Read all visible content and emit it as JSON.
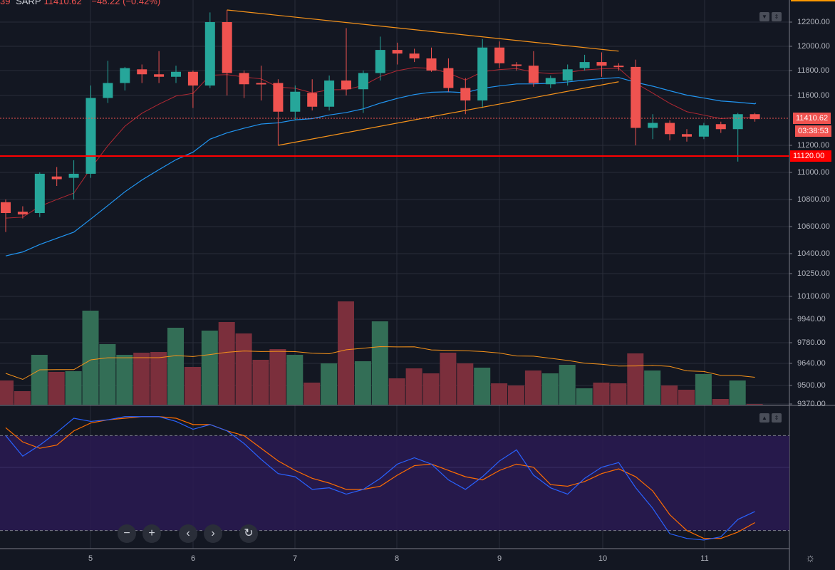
{
  "header": {
    "interval": "39",
    "symbol": "SARP",
    "price": "11410.62",
    "change": "−48.22 (−0.42%)"
  },
  "price_axis": {
    "labels": [
      "12200.00",
      "12000.00",
      "11800.00",
      "11600.00",
      "11200.00",
      "11000.00",
      "10800.00",
      "10600.00",
      "10400.00",
      "10250.00",
      "10100.00",
      "9940.00",
      "9780.00",
      "9640.00",
      "9500.00",
      "9370.00"
    ],
    "current_price_tag": "11410.62",
    "countdown_tag": "03:38:53",
    "alert_line_tag": "11120.00"
  },
  "time_axis": {
    "labels": [
      "5",
      "6",
      "7",
      "8",
      "9",
      "10",
      "11"
    ]
  },
  "colors": {
    "background": "#131722",
    "up": "#26a69a",
    "down": "#ef5350",
    "alert": "#ff0000",
    "trendline": "#f7931a",
    "ma_fast": "#b22833",
    "ma_slow": "#2196f3",
    "stoch_k": "#2962ff",
    "stoch_d": "#ff6d00",
    "stoch_band": "#2a1a52"
  },
  "controls": {
    "zoom_out": "−",
    "zoom_in": "+",
    "scroll_left": "‹",
    "scroll_right": "›",
    "reset": "↻"
  },
  "chart_data": {
    "type": "candlestick",
    "candles": [
      [
        10780,
        10800,
        10560,
        10700
      ],
      [
        10710,
        10750,
        10660,
        10690
      ],
      [
        10700,
        11000,
        10670,
        10990
      ],
      [
        10970,
        11040,
        10900,
        10950
      ],
      [
        10960,
        11090,
        10800,
        10990
      ],
      [
        10990,
        11680,
        10960,
        11580
      ],
      [
        11580,
        11880,
        11540,
        11700
      ],
      [
        11700,
        11830,
        11640,
        11820
      ],
      [
        11810,
        11850,
        11700,
        11770
      ],
      [
        11770,
        11960,
        11700,
        11750
      ],
      [
        11750,
        11840,
        11700,
        11790
      ],
      [
        11790,
        11800,
        11500,
        11680
      ],
      [
        11680,
        12280,
        11660,
        12200
      ],
      [
        12200,
        12300,
        11600,
        11780
      ],
      [
        11780,
        11800,
        11580,
        11690
      ],
      [
        11700,
        11840,
        11560,
        11690
      ],
      [
        11700,
        11730,
        11200,
        11470
      ],
      [
        11470,
        11680,
        11400,
        11630
      ],
      [
        11620,
        11730,
        11480,
        11510
      ],
      [
        11510,
        11760,
        11480,
        11720
      ],
      [
        11720,
        12150,
        11600,
        11650
      ],
      [
        11650,
        11800,
        11460,
        11780
      ],
      [
        11780,
        12080,
        11720,
        11970
      ],
      [
        11970,
        12030,
        11850,
        11940
      ],
      [
        11940,
        11980,
        11870,
        11900
      ],
      [
        11900,
        11990,
        11790,
        11800
      ],
      [
        11820,
        11900,
        11630,
        11660
      ],
      [
        11660,
        11740,
        11450,
        11560
      ],
      [
        11560,
        12060,
        11500,
        11990
      ],
      [
        11990,
        12040,
        11820,
        11860
      ],
      [
        11850,
        11870,
        11800,
        11840
      ],
      [
        11840,
        11960,
        11670,
        11700
      ],
      [
        11690,
        11760,
        11660,
        11740
      ],
      [
        11720,
        11850,
        11680,
        11810
      ],
      [
        11820,
        11930,
        11800,
        11870
      ],
      [
        11870,
        11950,
        11750,
        11840
      ],
      [
        11840,
        11860,
        11800,
        11830
      ],
      [
        11830,
        11890,
        11200,
        11340
      ],
      [
        11340,
        11450,
        11250,
        11380
      ],
      [
        11380,
        11400,
        11240,
        11290
      ],
      [
        11290,
        11330,
        11230,
        11270
      ],
      [
        11270,
        11380,
        11250,
        11360
      ],
      [
        11370,
        11390,
        11300,
        11330
      ],
      [
        11330,
        11460,
        11080,
        11450
      ],
      [
        11450,
        11460,
        11390,
        11410.62
      ]
    ],
    "volume_relative": [
      34,
      19,
      70,
      46,
      47,
      132,
      85,
      70,
      73,
      74,
      108,
      53,
      104,
      116,
      100,
      63,
      78,
      70,
      31,
      58,
      145,
      61,
      117,
      37,
      51,
      44,
      73,
      58,
      52,
      30,
      27,
      48,
      44,
      56,
      23,
      31,
      30,
      72,
      48,
      27,
      21,
      43,
      8,
      34,
      1
    ],
    "stoch_k": [
      80,
      67,
      74,
      82,
      91,
      89,
      90,
      92,
      92,
      92,
      89,
      84,
      87,
      83,
      75,
      65,
      56,
      54,
      46,
      47,
      43,
      46,
      53,
      62,
      66,
      62,
      52,
      46,
      54,
      64,
      71,
      55,
      47,
      43,
      53,
      60,
      63,
      47,
      34,
      18,
      15,
      14,
      16,
      27,
      32
    ],
    "stoch_d": [
      85,
      76,
      72,
      74,
      83,
      88,
      90,
      91,
      92,
      92,
      91,
      87,
      87,
      83,
      80,
      72,
      64,
      58,
      53,
      50,
      46,
      46,
      48,
      55,
      61,
      62,
      58,
      54,
      52,
      58,
      62,
      60,
      49,
      48,
      51,
      56,
      59,
      54,
      45,
      30,
      20,
      15,
      15,
      19,
      25
    ],
    "stoch_levels": [
      80,
      20
    ],
    "trendlines": [
      {
        "from_candle": 13,
        "from_price": 12300,
        "to_candle": 36,
        "to_price": 11960
      },
      {
        "from_candle": 16,
        "from_price": 11200,
        "to_candle": 36,
        "to_price": 11710
      }
    ],
    "horizontal_lines": [
      {
        "price": 11120,
        "style": "solid"
      },
      {
        "price": 11410.62,
        "style": "dotted"
      }
    ]
  }
}
